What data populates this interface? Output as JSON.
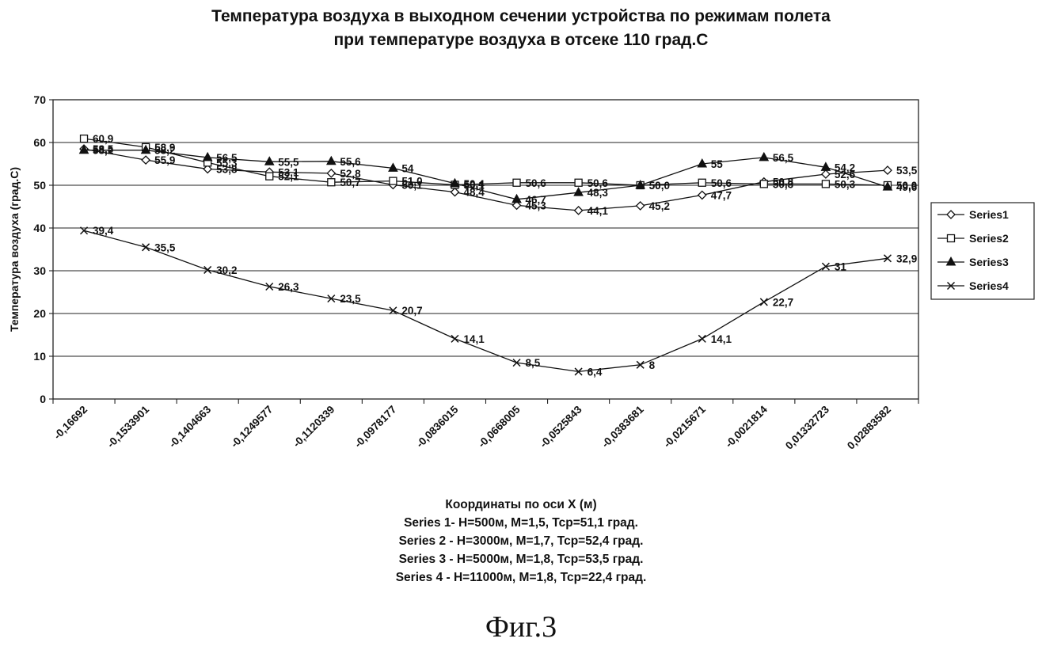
{
  "figure_label": "Фиг.3",
  "chart_data": {
    "type": "line",
    "title_lines": [
      "Температура воздуха в выходном сечении устройства по режимам полета",
      "при температуре воздуха в отсеке 110 град.С"
    ],
    "xlabel": "Координаты по оси X (м)",
    "ylabel": "Температура воздуха (град.С)",
    "xlabel_notes": [
      "Series 1- H=500м, M=1,5, Tcp=51,1 град.",
      "Series 2 - H=3000м, M=1,7, Tcp=52,4 град.",
      "Series 3 - H=5000м, M=1,8, Tcp=53,5 град.",
      "Series 4 - H=11000м, M=1,8, Tcp=22,4 град."
    ],
    "ylim": [
      0,
      70
    ],
    "yticks": [
      "0",
      "10",
      "20",
      "30",
      "40",
      "50",
      "60",
      "70"
    ],
    "categories": [
      "-0,16692",
      "-0,1533901",
      "-0,1404663",
      "-0,1249577",
      "-0,1120339",
      "-0,0978177",
      "-0,0836015",
      "-0,0668005",
      "-0,0525843",
      "-0,0383681",
      "-0,0215671",
      "-0,0021814",
      "0,01332723",
      "0,02883582"
    ],
    "grid": "horizontal",
    "legend_position": "right",
    "series": [
      {
        "name": "Series1",
        "marker": "diamond-open",
        "values": [
          58.5,
          55.9,
          53.8,
          53.1,
          52.8,
          50.1,
          48.4,
          45.3,
          44.1,
          45.2,
          47.7,
          50.8,
          52.6,
          53.5
        ],
        "labels": [
          "58,5",
          "55,9",
          "53,8",
          "53,1",
          "52,8",
          "50,1",
          "48,4",
          "45,3",
          "44,1",
          "45,2",
          "47,7",
          "50,8",
          "52,6",
          "53,5"
        ]
      },
      {
        "name": "Series2",
        "marker": "square-open",
        "values": [
          60.9,
          58.9,
          55.3,
          52.1,
          50.7,
          51.0,
          50.1,
          50.6,
          50.6,
          50.0,
          50.6,
          50.3,
          50.3,
          50.0
        ],
        "labels": [
          "60,9",
          "58,9",
          "55,3",
          "52,1",
          "50,7",
          "51,0",
          "50,1",
          "50,6",
          "50,6",
          "50,0",
          "50,6",
          "50,3",
          "50,3",
          "50,0"
        ]
      },
      {
        "name": "Series3",
        "marker": "triangle-filled",
        "values": [
          58.2,
          58.2,
          56.5,
          55.5,
          55.6,
          54.0,
          50.4,
          46.7,
          48.3,
          50.0,
          55.0,
          56.5,
          54.2,
          49.6
        ],
        "labels": [
          "58,2",
          "58,2",
          "56,5",
          "55,5",
          "55,6",
          "54",
          "50,4",
          "46,7",
          "48,3",
          "50",
          "55",
          "56,5",
          "54,2",
          "49,6"
        ]
      },
      {
        "name": "Series4",
        "marker": "x",
        "values": [
          39.4,
          35.5,
          30.2,
          26.3,
          23.5,
          20.7,
          14.1,
          8.5,
          6.4,
          8.0,
          14.1,
          22.7,
          31.0,
          32.9
        ],
        "labels": [
          "39,4",
          "35,5",
          "30,2",
          "26,3",
          "23,5",
          "20,7",
          "14,1",
          "8,5",
          "6,4",
          "8",
          "14,1",
          "22,7",
          "31",
          "32,9"
        ]
      }
    ]
  }
}
